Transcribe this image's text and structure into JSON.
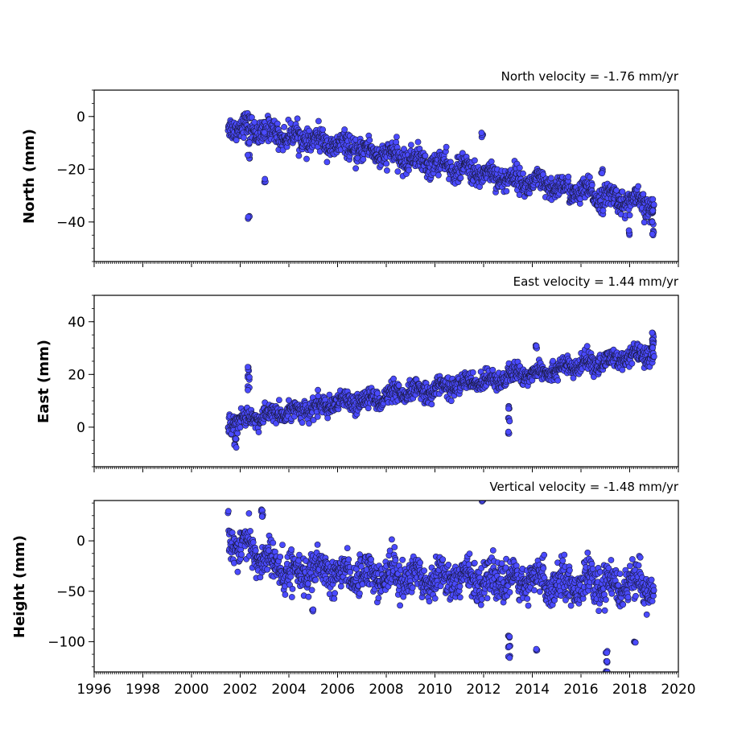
{
  "chart_data": [
    {
      "type": "scatter",
      "title": "North velocity = -1.76 mm/yr",
      "xlabel": "",
      "ylabel": "North (mm)",
      "xlim": [
        1996,
        2020
      ],
      "ylim": [
        -55,
        10
      ],
      "xticks": [
        1996,
        1998,
        2000,
        2002,
        2004,
        2006,
        2008,
        2010,
        2012,
        2014,
        2016,
        2018,
        2020
      ],
      "yticks": [
        0,
        -20,
        -40
      ],
      "x_tick_labels_visible": false,
      "marker_color": "#4a4aff",
      "marker_edge_color": "#1a1a40",
      "x_extent": [
        2001.5,
        2019.0
      ],
      "trend": [
        [
          2001.5,
          -3
        ],
        [
          2019.0,
          -34
        ]
      ],
      "scatter_sd": 2.2,
      "features": [
        {
          "x": 2002.35,
          "y": [
            -38,
            -15,
            -10
          ]
        },
        {
          "x": 2003.0,
          "y": [
            -24,
            -7
          ]
        },
        {
          "x": 2011.95,
          "y": [
            -7
          ]
        },
        {
          "x": 2016.85,
          "y": [
            -21
          ]
        },
        {
          "x": 2018.0,
          "y": [
            -44
          ]
        },
        {
          "x": 2018.95,
          "y": [
            -44,
            -40,
            -36
          ]
        }
      ]
    },
    {
      "type": "scatter",
      "title": "East velocity = 1.44 mm/yr",
      "xlabel": "",
      "ylabel": "East (mm)",
      "xlim": [
        1996,
        2020
      ],
      "ylim": [
        -15,
        50
      ],
      "xticks": [
        1996,
        1998,
        2000,
        2002,
        2004,
        2006,
        2008,
        2010,
        2012,
        2014,
        2016,
        2018,
        2020
      ],
      "yticks": [
        0,
        20,
        40
      ],
      "x_tick_labels_visible": false,
      "marker_color": "#4a4aff",
      "marker_edge_color": "#1a1a40",
      "x_extent": [
        2001.5,
        2019.0
      ],
      "trend": [
        [
          2001.5,
          2
        ],
        [
          2019.0,
          28
        ]
      ],
      "scatter_sd": 1.8,
      "features": [
        {
          "x": 2002.35,
          "y": [
            22,
            19,
            15
          ]
        },
        {
          "x": 2001.8,
          "y": [
            -7,
            -5
          ]
        },
        {
          "x": 2013.05,
          "y": [
            -2,
            3,
            8
          ]
        },
        {
          "x": 2014.15,
          "y": [
            30
          ]
        },
        {
          "x": 2018.95,
          "y": [
            35,
            33,
            31
          ]
        }
      ]
    },
    {
      "type": "scatter",
      "title": "Vertical velocity = -1.48 mm/yr",
      "xlabel": "",
      "ylabel": "Height (mm)",
      "xlim": [
        1996,
        2020
      ],
      "ylim": [
        -130,
        40
      ],
      "xticks": [
        1996,
        1998,
        2000,
        2002,
        2004,
        2006,
        2008,
        2010,
        2012,
        2014,
        2016,
        2018,
        2020
      ],
      "xtick_labels": [
        "1996",
        "1998",
        "2000",
        "2002",
        "2004",
        "2006",
        "2008",
        "2010",
        "2012",
        "2014",
        "2016",
        "2018",
        "2020"
      ],
      "yticks": [
        0,
        -50,
        -100
      ],
      "x_tick_labels_visible": true,
      "marker_color": "#4a4aff",
      "marker_edge_color": "#1a1a40",
      "x_extent": [
        2001.5,
        2019.0
      ],
      "trend": [
        [
          2001.5,
          5
        ],
        [
          2003.8,
          -30
        ],
        [
          2019.0,
          -45
        ]
      ],
      "scatter_sd": 9,
      "features": [
        {
          "x": 2002.9,
          "y": [
            30,
            25
          ]
        },
        {
          "x": 2011.95,
          "y": [
            40
          ]
        },
        {
          "x": 2013.05,
          "y": [
            -115,
            -105,
            -95
          ]
        },
        {
          "x": 2014.2,
          "y": [
            -108
          ]
        },
        {
          "x": 2017.05,
          "y": [
            -130,
            -120,
            -110
          ]
        },
        {
          "x": 2005.0,
          "y": [
            -69
          ]
        },
        {
          "x": 2018.2,
          "y": [
            -100
          ]
        }
      ]
    }
  ]
}
